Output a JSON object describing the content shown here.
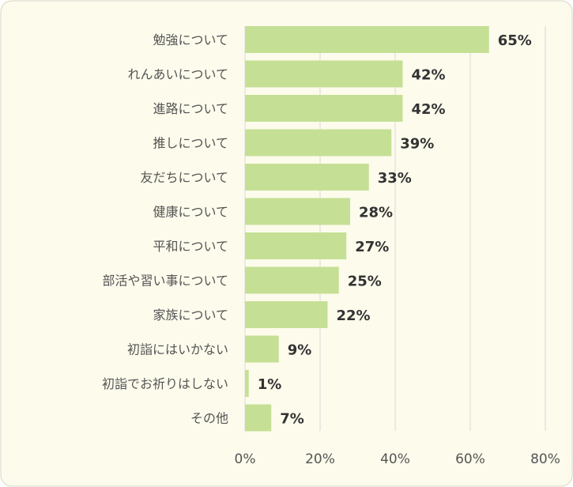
{
  "chart_data": {
    "type": "bar",
    "orientation": "horizontal",
    "categories": [
      "勉強について",
      "れんあいについて",
      "進路について",
      "推しについて",
      "友だちについて",
      "健康について",
      "平和について",
      "部活や習い事について",
      "家族について",
      "初詣にはいかない",
      "初詣でお祈りはしない",
      "その他"
    ],
    "values": [
      65,
      42,
      42,
      39,
      33,
      28,
      27,
      25,
      22,
      9,
      1,
      7
    ],
    "value_labels": [
      "65%",
      "42%",
      "42%",
      "39%",
      "33%",
      "28%",
      "27%",
      "25%",
      "22%",
      "9%",
      "1%",
      "7%"
    ],
    "x_ticks": [
      0,
      20,
      40,
      60,
      80
    ],
    "x_tick_labels": [
      "0%",
      "20%",
      "40%",
      "60%",
      "80%"
    ],
    "xlim": [
      0,
      80
    ],
    "grid": "vertical",
    "legend": "none",
    "title": "",
    "xlabel": "",
    "ylabel": ""
  },
  "colors": {
    "background": "#fdfbec",
    "border": "#d9d6c4",
    "bar": "#c5e095",
    "grid": "#d9d9d9",
    "label_text": "#555555",
    "value_text": "#333333"
  }
}
